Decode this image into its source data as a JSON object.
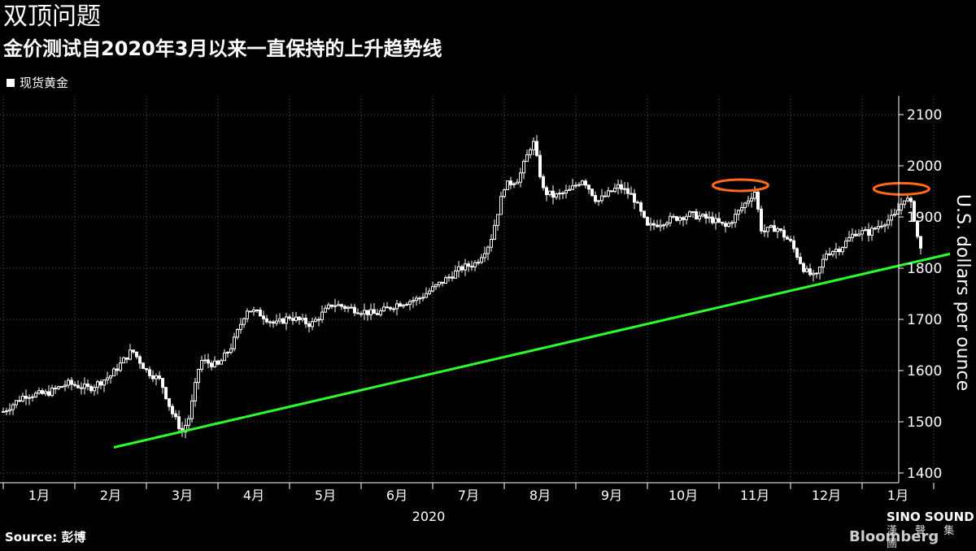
{
  "header": {
    "title": "双顶问题",
    "subtitle": "金价测试自2020年3月以来一直保持的上升趋势线"
  },
  "legend": {
    "label": "现货黄金"
  },
  "footer": {
    "source": "Source: 彭博",
    "watermark_name": "SINO SOUND",
    "watermark_cn": "漢 聲 集 團",
    "publisher": "Bloomberg"
  },
  "colors": {
    "background": "#000000",
    "candles": "#ffffff",
    "trendline": "#2bff2b",
    "highlight": "#ff6a1a",
    "grid": "#555555"
  },
  "chart_data": {
    "type": "candlestick",
    "ylabel": "U.S. dollars per ounce",
    "ylim": [
      1400,
      2100
    ],
    "y_ticks": [
      1400,
      1500,
      1600,
      1700,
      1800,
      1900,
      2000,
      2100
    ],
    "x_ticks": [
      "1月",
      "2月",
      "3月",
      "4月",
      "5月",
      "6月",
      "7月",
      "8月",
      "9月",
      "10月",
      "11月",
      "12月",
      "1月"
    ],
    "x_year_label": "2020",
    "grid": true,
    "series": [
      {
        "type": "line",
        "points": [
          [
            0.0,
            1520
          ],
          [
            0.3,
            1552
          ],
          [
            0.6,
            1555
          ],
          [
            0.9,
            1575
          ],
          [
            1.2,
            1565
          ],
          [
            1.5,
            1590
          ],
          [
            1.8,
            1640
          ],
          [
            2.0,
            1600
          ],
          [
            2.2,
            1580
          ],
          [
            2.35,
            1520
          ],
          [
            2.5,
            1480
          ],
          [
            2.6,
            1510
          ],
          [
            2.75,
            1620
          ],
          [
            3.0,
            1610
          ],
          [
            3.2,
            1650
          ],
          [
            3.4,
            1720
          ],
          [
            3.6,
            1710
          ],
          [
            3.8,
            1690
          ],
          [
            4.0,
            1705
          ],
          [
            4.3,
            1690
          ],
          [
            4.6,
            1730
          ],
          [
            4.9,
            1720
          ],
          [
            5.2,
            1710
          ],
          [
            5.5,
            1730
          ],
          [
            5.8,
            1740
          ],
          [
            6.1,
            1770
          ],
          [
            6.4,
            1800
          ],
          [
            6.6,
            1810
          ],
          [
            6.8,
            1850
          ],
          [
            7.0,
            1960
          ],
          [
            7.2,
            1975
          ],
          [
            7.4,
            2050
          ],
          [
            7.55,
            1950
          ],
          [
            7.7,
            1940
          ],
          [
            7.9,
            1950
          ],
          [
            8.1,
            1975
          ],
          [
            8.3,
            1930
          ],
          [
            8.6,
            1960
          ],
          [
            8.8,
            1940
          ],
          [
            9.0,
            1880
          ],
          [
            9.3,
            1895
          ],
          [
            9.6,
            1905
          ],
          [
            9.9,
            1895
          ],
          [
            10.1,
            1880
          ],
          [
            10.3,
            1915
          ],
          [
            10.5,
            1950
          ],
          [
            10.6,
            1870
          ],
          [
            10.8,
            1880
          ],
          [
            11.0,
            1850
          ],
          [
            11.2,
            1795
          ],
          [
            11.35,
            1780
          ],
          [
            11.5,
            1830
          ],
          [
            11.7,
            1840
          ],
          [
            11.9,
            1870
          ],
          [
            12.1,
            1870
          ],
          [
            12.3,
            1890
          ],
          [
            12.45,
            1900
          ],
          [
            12.6,
            1940
          ],
          [
            12.7,
            1920
          ],
          [
            12.8,
            1840
          ],
          [
            12.85,
            1830
          ]
        ]
      },
      {
        "name": "trendline",
        "type": "line",
        "points": [
          [
            2.0,
            1450
          ],
          [
            13.0,
            1828
          ]
        ]
      }
    ],
    "annotations": [
      {
        "type": "ellipse",
        "x": 10.3,
        "y": 1962
      },
      {
        "type": "ellipse",
        "x": 12.55,
        "y": 1955
      }
    ]
  }
}
